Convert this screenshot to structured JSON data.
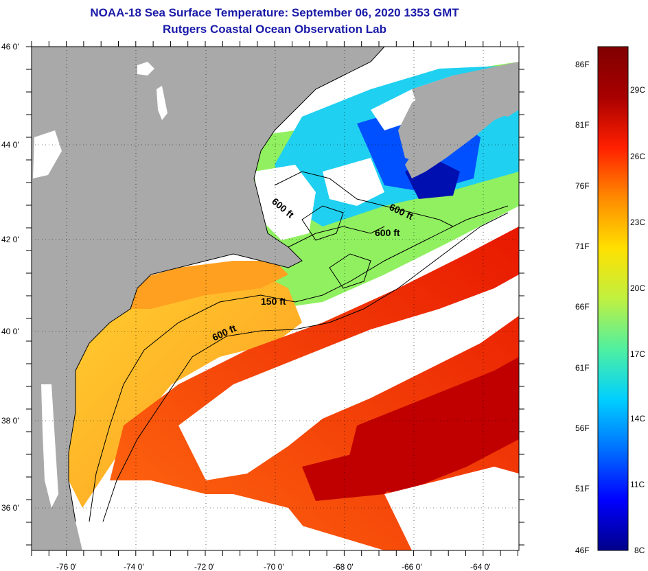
{
  "title": {
    "line1": "NOAA-18 Sea Surface Temperature:  September 06, 2020 1353 GMT",
    "line2": "Rutgers Coastal Ocean Observation Lab"
  },
  "axes": {
    "lat_labels": [
      "46 0'",
      "44 0'",
      "42 0'",
      "40 0'",
      "38 0'",
      "36 0'"
    ],
    "lon_labels": [
      "-76 0'",
      "-74 0'",
      "-72 0'",
      "-70 0'",
      "-68 0'",
      "-66 0'",
      "-64 0'"
    ]
  },
  "contours": [
    {
      "label": "600 ft"
    },
    {
      "label": "600 ft"
    },
    {
      "label": "600 ft"
    },
    {
      "label": "150 ft"
    },
    {
      "label": "600 ft"
    }
  ],
  "colorbar": {
    "fahrenheit": [
      "86F",
      "81F",
      "76F",
      "71F",
      "66F",
      "61F",
      "56F",
      "51F",
      "46F"
    ],
    "celsius": [
      "29C",
      "26C",
      "23C",
      "20C",
      "17C",
      "14C",
      "11C",
      "8C"
    ],
    "stops": [
      "#00008a",
      "#0000ff",
      "#0070ff",
      "#00d0ff",
      "#50f0a0",
      "#c0f040",
      "#ffe000",
      "#ff8a00",
      "#ff2000",
      "#a80000",
      "#800000"
    ]
  },
  "colors": {
    "land": "#a9a9a9",
    "cloud": "#ffffff",
    "warm": "#ff3000",
    "hot": "#c00000",
    "orange": "#ffa020",
    "green": "#90f060",
    "cyan": "#20d0f0",
    "blue": "#0050ff",
    "darkblue": "#0010b0"
  }
}
